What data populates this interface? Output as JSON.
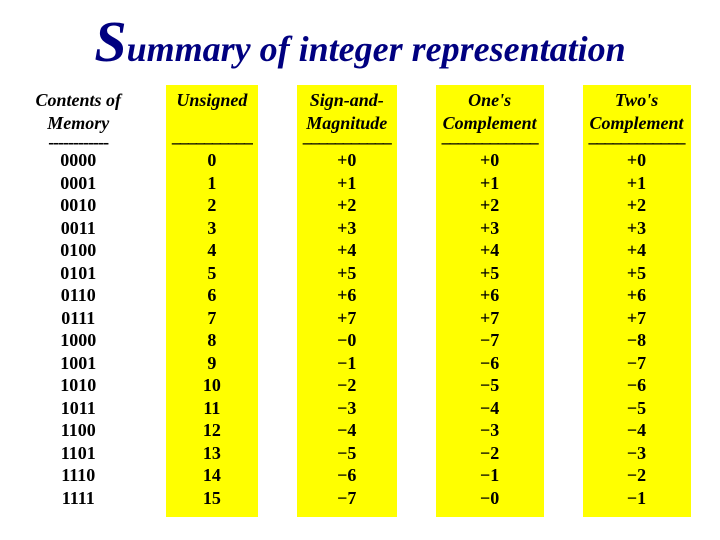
{
  "title": {
    "big_letter": "S",
    "rest": "ummary of integer representation",
    "color": "#000080",
    "big_fontsize": 58,
    "rest_fontsize": 36
  },
  "colors": {
    "background": "#ffffff",
    "highlight": "#ffff00",
    "text": "#000000"
  },
  "columns": [
    {
      "header_line1": "Contents of",
      "header_line2": "Memory",
      "separator": "------------",
      "highlight": false,
      "values": [
        "0000",
        "0001",
        "0010",
        "0011",
        "0100",
        "0101",
        "0110",
        "0111",
        "1000",
        "1001",
        "1010",
        "1011",
        "1100",
        "1101",
        "1110",
        "1111"
      ]
    },
    {
      "header_line1": "Unsigned",
      "header_line2": "",
      "separator": "––––––––––",
      "highlight": true,
      "values": [
        "0",
        "1",
        "2",
        "3",
        "4",
        "5",
        "6",
        "7",
        "8",
        "9",
        "10",
        "11",
        "12",
        "13",
        "14",
        "15"
      ]
    },
    {
      "header_line1": "Sign-and-",
      "header_line2": "Magnitude",
      "separator": "–––––––––––",
      "highlight": true,
      "values": [
        "+0",
        "+1",
        "+2",
        "+3",
        "+4",
        "+5",
        "+6",
        "+7",
        "−0",
        "−1",
        "−2",
        "−3",
        "−4",
        "−5",
        "−6",
        "−7"
      ]
    },
    {
      "header_line1": "One's",
      "header_line2": "Complement",
      "separator": "––––––––––––",
      "highlight": true,
      "values": [
        "+0",
        "+1",
        "+2",
        "+3",
        "+4",
        "+5",
        "+6",
        "+7",
        "−7",
        "−6",
        "−5",
        "−4",
        "−3",
        "−2",
        "−1",
        "−0"
      ]
    },
    {
      "header_line1": "Two's",
      "header_line2": "Complement",
      "separator": "––––––––––––",
      "highlight": true,
      "values": [
        "+0",
        "+1",
        "+2",
        "+3",
        "+4",
        "+5",
        "+6",
        "+7",
        "−8",
        "−7",
        "−6",
        "−5",
        "−4",
        "−3",
        "−2",
        "−1"
      ]
    }
  ]
}
